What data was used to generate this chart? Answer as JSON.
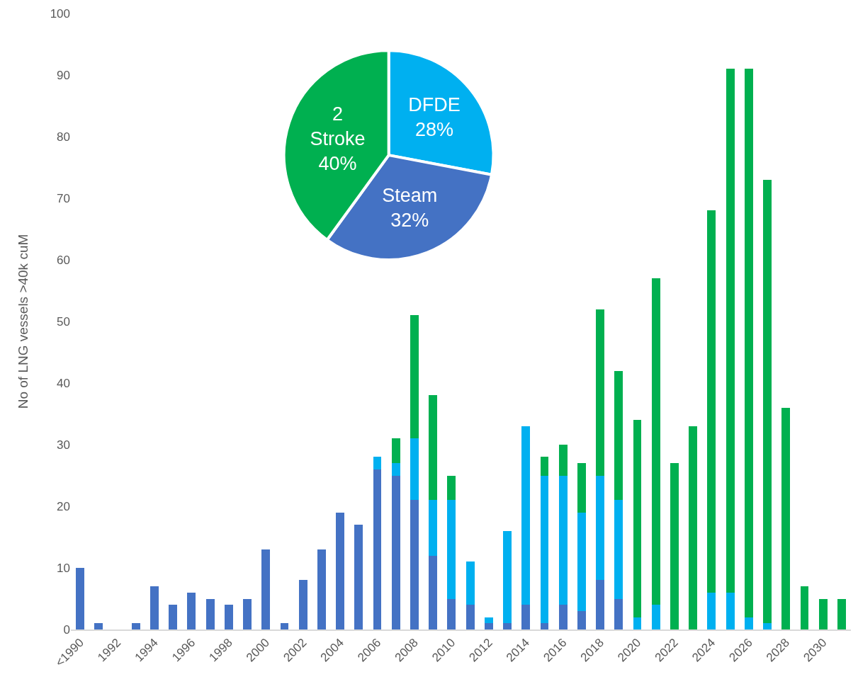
{
  "chart_data": [
    {
      "type": "bar",
      "ylabel": "No of LNG vessels >40k cuM",
      "stacked": true,
      "ylim": [
        0,
        100
      ],
      "yticks": [
        0,
        10,
        20,
        30,
        40,
        50,
        60,
        70,
        80,
        90,
        100
      ],
      "categories": [
        "<1990",
        null,
        "1992",
        null,
        "1994",
        null,
        "1996",
        null,
        "1998",
        null,
        "2000",
        null,
        "2002",
        null,
        "2004",
        null,
        "2006",
        null,
        "2008",
        null,
        "2010",
        null,
        "2012",
        null,
        "2014",
        null,
        "2016",
        null,
        "2018",
        null,
        "2020",
        null,
        "2022",
        null,
        "2024",
        null,
        "2026",
        null,
        "2028",
        null,
        "2030",
        null
      ],
      "series": [
        {
          "color": "#4472c4",
          "values": [
            10,
            1,
            0,
            1,
            7,
            4,
            6,
            5,
            4,
            5,
            13,
            1,
            8,
            13,
            19,
            17,
            26,
            25,
            21,
            12,
            5,
            4,
            1,
            1,
            4,
            1,
            4,
            3,
            8,
            5,
            0,
            0,
            0,
            0,
            0,
            0,
            0,
            0,
            0,
            0,
            0,
            0
          ]
        },
        {
          "color": "#00b0f0",
          "values": [
            0,
            0,
            0,
            0,
            0,
            0,
            0,
            0,
            0,
            0,
            0,
            0,
            0,
            0,
            0,
            0,
            2,
            2,
            10,
            9,
            16,
            7,
            1,
            15,
            29,
            24,
            21,
            16,
            17,
            16,
            2,
            4,
            0,
            0,
            6,
            6,
            2,
            1,
            0,
            0,
            0,
            0
          ]
        },
        {
          "color": "#00b050",
          "values": [
            0,
            0,
            0,
            0,
            0,
            0,
            0,
            0,
            0,
            0,
            0,
            0,
            0,
            0,
            0,
            0,
            0,
            4,
            20,
            17,
            4,
            0,
            0,
            0,
            0,
            3,
            5,
            8,
            27,
            21,
            32,
            53,
            27,
            33,
            62,
            85,
            89,
            72,
            36,
            7,
            5,
            5
          ]
        }
      ]
    },
    {
      "type": "pie",
      "categories": [
        "DFDE",
        "Steam",
        "2 Stroke"
      ],
      "values": [
        28,
        32,
        40
      ],
      "value_labels": [
        "28%",
        "32%",
        "40%"
      ],
      "colors": [
        "#00b0f0",
        "#4472c4",
        "#00b050"
      ]
    }
  ]
}
